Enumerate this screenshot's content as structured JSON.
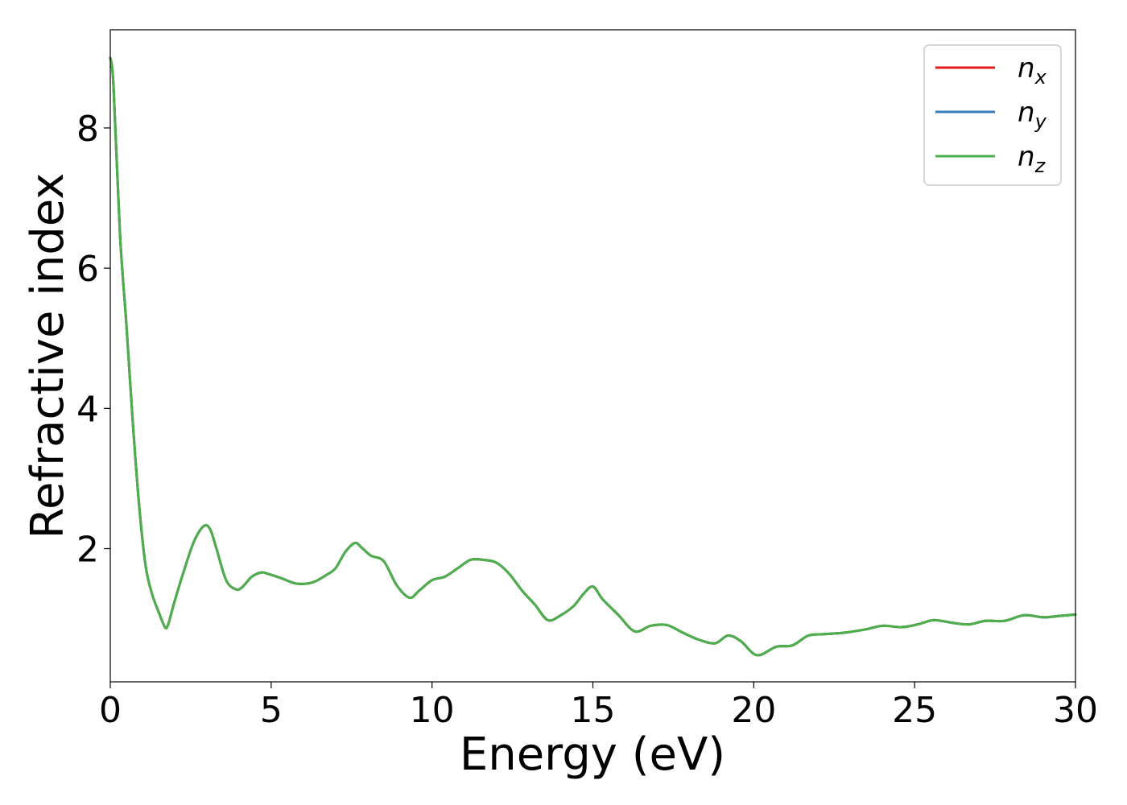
{
  "chart_data": {
    "type": "line",
    "xlabel": "Energy (eV)",
    "ylabel": "Refractive index",
    "xlim": [
      0,
      30
    ],
    "ylim": [
      0.1,
      9.4
    ],
    "xticks": [
      0,
      5,
      10,
      15,
      20,
      25,
      30
    ],
    "yticks": [
      2,
      4,
      6,
      8
    ],
    "grid": false,
    "legend_position": "top-right",
    "series": [
      {
        "name": "n",
        "subscript": "x",
        "color": "#e41a1c",
        "x": [
          0,
          0.1,
          0.3,
          0.5,
          0.7,
          0.9,
          1.1,
          1.3,
          1.5,
          1.7,
          1.8,
          2.0,
          2.3,
          2.6,
          2.9,
          3.1,
          3.3,
          3.6,
          3.9,
          4.1,
          4.4,
          4.7,
          4.9,
          5.3,
          5.8,
          6.3,
          6.7,
          7.0,
          7.3,
          7.6,
          7.8,
          8.1,
          8.5,
          8.9,
          9.3,
          9.6,
          10.0,
          10.4,
          10.8,
          11.2,
          11.6,
          12.0,
          12.4,
          12.8,
          13.2,
          13.6,
          14.0,
          14.4,
          14.7,
          15.0,
          15.3,
          15.8,
          16.3,
          16.8,
          17.3,
          17.8,
          18.3,
          18.8,
          19.2,
          19.6,
          20.1,
          20.7,
          21.2,
          21.7,
          22.2,
          22.8,
          23.5,
          24.0,
          24.6,
          25.1,
          25.6,
          26.2,
          26.7,
          27.2,
          27.8,
          28.4,
          29.0,
          29.5,
          30.0
        ],
        "y": [
          9.0,
          8.6,
          6.5,
          5.2,
          3.8,
          2.6,
          1.75,
          1.35,
          1.1,
          0.88,
          0.92,
          1.25,
          1.7,
          2.1,
          2.32,
          2.28,
          2.0,
          1.55,
          1.42,
          1.45,
          1.6,
          1.66,
          1.64,
          1.58,
          1.5,
          1.52,
          1.62,
          1.72,
          1.95,
          2.08,
          2.02,
          1.9,
          1.82,
          1.48,
          1.3,
          1.4,
          1.55,
          1.6,
          1.72,
          1.84,
          1.84,
          1.8,
          1.64,
          1.4,
          1.2,
          0.98,
          1.05,
          1.18,
          1.35,
          1.46,
          1.28,
          1.05,
          0.82,
          0.9,
          0.91,
          0.8,
          0.7,
          0.65,
          0.76,
          0.68,
          0.48,
          0.6,
          0.62,
          0.76,
          0.78,
          0.8,
          0.85,
          0.9,
          0.88,
          0.92,
          0.98,
          0.94,
          0.92,
          0.97,
          0.97,
          1.05,
          1.02,
          1.04,
          1.06
        ]
      },
      {
        "name": "n",
        "subscript": "y",
        "color": "#377eb8",
        "x": [
          0,
          0.1,
          0.3,
          0.5,
          0.7,
          0.9,
          1.1,
          1.3,
          1.5,
          1.7,
          1.8,
          2.0,
          2.3,
          2.6,
          2.9,
          3.1,
          3.3,
          3.6,
          3.9,
          4.1,
          4.4,
          4.7,
          4.9,
          5.3,
          5.8,
          6.3,
          6.7,
          7.0,
          7.3,
          7.6,
          7.8,
          8.1,
          8.5,
          8.9,
          9.3,
          9.6,
          10.0,
          10.4,
          10.8,
          11.2,
          11.6,
          12.0,
          12.4,
          12.8,
          13.2,
          13.6,
          14.0,
          14.4,
          14.7,
          15.0,
          15.3,
          15.8,
          16.3,
          16.8,
          17.3,
          17.8,
          18.3,
          18.8,
          19.2,
          19.6,
          20.1,
          20.7,
          21.2,
          21.7,
          22.2,
          22.8,
          23.5,
          24.0,
          24.6,
          25.1,
          25.6,
          26.2,
          26.7,
          27.2,
          27.8,
          28.4,
          29.0,
          29.5,
          30.0
        ],
        "y": [
          9.0,
          8.6,
          6.5,
          5.2,
          3.8,
          2.6,
          1.75,
          1.35,
          1.1,
          0.88,
          0.92,
          1.25,
          1.7,
          2.1,
          2.32,
          2.28,
          2.0,
          1.55,
          1.42,
          1.45,
          1.6,
          1.66,
          1.64,
          1.58,
          1.5,
          1.52,
          1.62,
          1.72,
          1.95,
          2.08,
          2.02,
          1.9,
          1.82,
          1.48,
          1.3,
          1.4,
          1.55,
          1.6,
          1.72,
          1.84,
          1.84,
          1.8,
          1.64,
          1.4,
          1.2,
          0.98,
          1.05,
          1.18,
          1.35,
          1.46,
          1.28,
          1.05,
          0.82,
          0.9,
          0.91,
          0.8,
          0.7,
          0.65,
          0.76,
          0.68,
          0.48,
          0.6,
          0.62,
          0.76,
          0.78,
          0.8,
          0.85,
          0.9,
          0.88,
          0.92,
          0.98,
          0.94,
          0.92,
          0.97,
          0.97,
          1.05,
          1.02,
          1.04,
          1.06
        ]
      },
      {
        "name": "n",
        "subscript": "z",
        "color": "#4daf4a",
        "x": [
          0,
          0.1,
          0.3,
          0.5,
          0.7,
          0.9,
          1.1,
          1.3,
          1.5,
          1.7,
          1.8,
          2.0,
          2.3,
          2.6,
          2.9,
          3.1,
          3.3,
          3.6,
          3.9,
          4.1,
          4.4,
          4.7,
          4.9,
          5.3,
          5.8,
          6.3,
          6.7,
          7.0,
          7.3,
          7.6,
          7.8,
          8.1,
          8.5,
          8.9,
          9.3,
          9.6,
          10.0,
          10.4,
          10.8,
          11.2,
          11.6,
          12.0,
          12.4,
          12.8,
          13.2,
          13.6,
          14.0,
          14.4,
          14.7,
          15.0,
          15.3,
          15.8,
          16.3,
          16.8,
          17.3,
          17.8,
          18.3,
          18.8,
          19.2,
          19.6,
          20.1,
          20.7,
          21.2,
          21.7,
          22.2,
          22.8,
          23.5,
          24.0,
          24.6,
          25.1,
          25.6,
          26.2,
          26.7,
          27.2,
          27.8,
          28.4,
          29.0,
          29.5,
          30.0
        ],
        "y": [
          9.0,
          8.6,
          6.5,
          5.2,
          3.8,
          2.6,
          1.75,
          1.35,
          1.1,
          0.88,
          0.92,
          1.25,
          1.7,
          2.1,
          2.32,
          2.28,
          2.0,
          1.55,
          1.42,
          1.45,
          1.6,
          1.66,
          1.64,
          1.58,
          1.5,
          1.52,
          1.62,
          1.72,
          1.95,
          2.08,
          2.02,
          1.9,
          1.82,
          1.48,
          1.3,
          1.4,
          1.55,
          1.6,
          1.72,
          1.84,
          1.84,
          1.8,
          1.64,
          1.4,
          1.2,
          0.98,
          1.05,
          1.18,
          1.35,
          1.46,
          1.28,
          1.05,
          0.82,
          0.9,
          0.91,
          0.8,
          0.7,
          0.65,
          0.76,
          0.68,
          0.48,
          0.6,
          0.62,
          0.76,
          0.78,
          0.8,
          0.85,
          0.9,
          0.88,
          0.92,
          0.98,
          0.94,
          0.92,
          0.97,
          0.97,
          1.05,
          1.02,
          1.04,
          1.06
        ]
      }
    ]
  }
}
